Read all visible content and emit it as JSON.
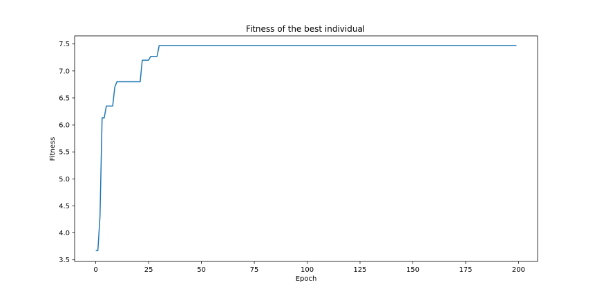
{
  "chart_data": {
    "type": "line",
    "title": "Fitness of the best individual",
    "xlabel": "Epoch",
    "ylabel": "Fitness",
    "xlim": [
      -10,
      209
    ],
    "ylim": [
      3.47,
      7.65
    ],
    "xticks": [
      0,
      25,
      50,
      75,
      100,
      125,
      150,
      175,
      200
    ],
    "yticks": [
      3.5,
      4.0,
      4.5,
      5.0,
      5.5,
      6.0,
      6.5,
      7.0,
      7.5
    ],
    "ytick_labels": [
      "3.5",
      "4.0",
      "4.5",
      "5.0",
      "5.5",
      "6.0",
      "6.5",
      "7.0",
      "7.5"
    ],
    "grid": false,
    "series": [
      {
        "color": "#1f77b4",
        "points": [
          [
            0,
            3.67
          ],
          [
            1,
            3.67
          ],
          [
            2,
            4.3
          ],
          [
            3,
            6.13
          ],
          [
            4,
            6.13
          ],
          [
            5,
            6.35
          ],
          [
            6,
            6.35
          ],
          [
            7,
            6.35
          ],
          [
            8,
            6.35
          ],
          [
            9,
            6.7
          ],
          [
            10,
            6.8
          ],
          [
            11,
            6.8
          ],
          [
            12,
            6.8
          ],
          [
            13,
            6.8
          ],
          [
            14,
            6.8
          ],
          [
            15,
            6.8
          ],
          [
            16,
            6.8
          ],
          [
            17,
            6.8
          ],
          [
            18,
            6.8
          ],
          [
            19,
            6.8
          ],
          [
            20,
            6.8
          ],
          [
            21,
            6.8
          ],
          [
            22,
            7.2
          ],
          [
            23,
            7.2
          ],
          [
            24,
            7.2
          ],
          [
            25,
            7.2
          ],
          [
            26,
            7.27
          ],
          [
            27,
            7.27
          ],
          [
            28,
            7.27
          ],
          [
            29,
            7.27
          ],
          [
            30,
            7.47
          ],
          [
            50,
            7.47
          ],
          [
            100,
            7.47
          ],
          [
            150,
            7.47
          ],
          [
            199,
            7.47
          ]
        ]
      }
    ]
  }
}
